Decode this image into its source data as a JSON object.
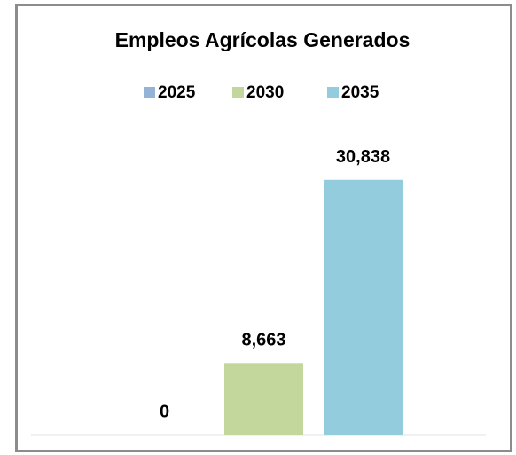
{
  "chart_data": {
    "type": "bar",
    "title": "Empleos Agrícolas Generados",
    "categories": [
      null
    ],
    "series": [
      {
        "name": "2025",
        "color": "#95b3d7",
        "values": [
          0
        ],
        "value_labels": [
          "0"
        ]
      },
      {
        "name": "2030",
        "color": "#c3d69b",
        "values": [
          8663
        ],
        "value_labels": [
          "8,663"
        ]
      },
      {
        "name": "2035",
        "color": "#93cddd",
        "values": [
          30838
        ],
        "value_labels": [
          "30,838"
        ]
      }
    ],
    "ylim": [
      0,
      35000
    ],
    "legend": "top"
  }
}
